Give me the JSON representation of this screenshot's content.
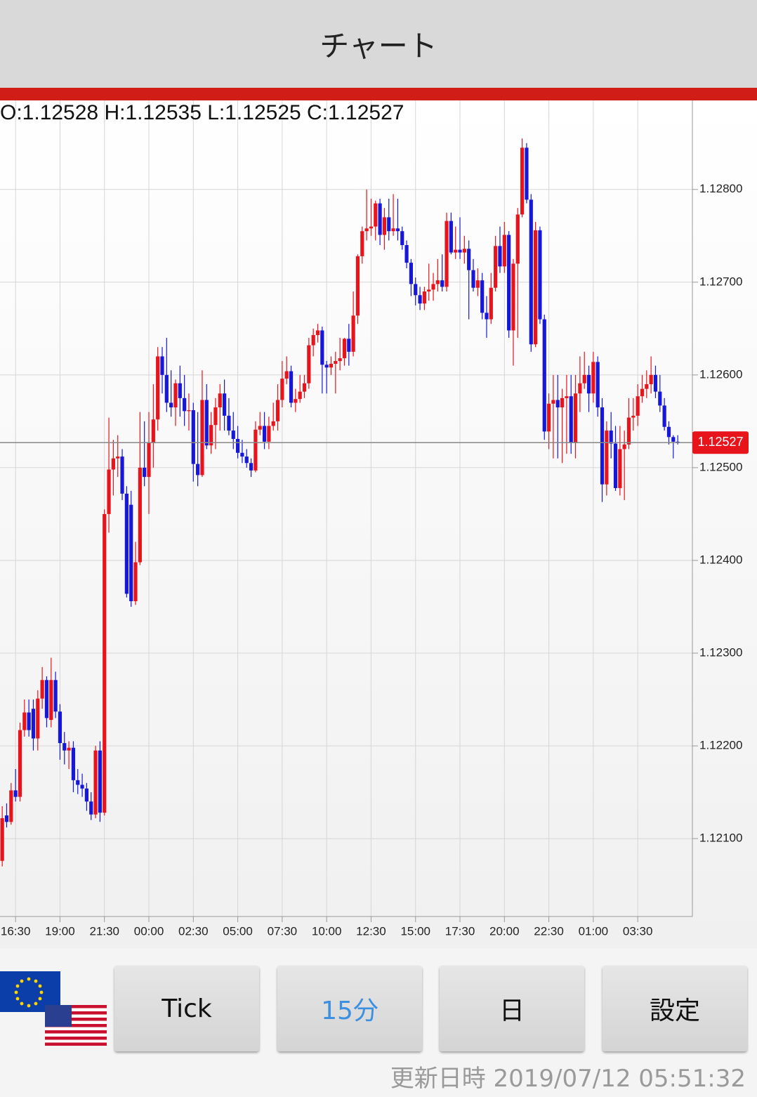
{
  "header": {
    "title": "チャート"
  },
  "chart_data": {
    "type": "candlestick",
    "ohlc_label": "O:1.12528 H:1.12535 L:1.12525 C:1.12527",
    "up_color": "#e8141c",
    "down_color": "#1717d9",
    "grid": true,
    "last_price": 1.12527,
    "xlim": [
      -0.5,
      155.3
    ],
    "xticks": [
      {
        "value": 3,
        "label": "16:30"
      },
      {
        "value": 13,
        "label": "19:00"
      },
      {
        "value": 23,
        "label": "21:30"
      },
      {
        "value": 33,
        "label": "00:00"
      },
      {
        "value": 43,
        "label": "02:30"
      },
      {
        "value": 53,
        "label": "05:00"
      },
      {
        "value": 63,
        "label": "07:30"
      },
      {
        "value": 73,
        "label": "10:00"
      },
      {
        "value": 83,
        "label": "12:30"
      },
      {
        "value": 93,
        "label": "15:00"
      },
      {
        "value": 103,
        "label": "17:30"
      },
      {
        "value": 113,
        "label": "20:00"
      },
      {
        "value": 123,
        "label": "22:30"
      },
      {
        "value": 133,
        "label": "01:00"
      },
      {
        "value": 143,
        "label": "03:30"
      }
    ],
    "ylim": [
      1.12016,
      1.12896
    ],
    "yticks": [
      {
        "value": 1.121,
        "label": "1.12100"
      },
      {
        "value": 1.122,
        "label": "1.12200"
      },
      {
        "value": 1.123,
        "label": "1.12300"
      },
      {
        "value": 1.124,
        "label": "1.12400"
      },
      {
        "value": 1.125,
        "label": "1.12500"
      },
      {
        "value": 1.126,
        "label": "1.12600"
      },
      {
        "value": 1.127,
        "label": "1.12700"
      },
      {
        "value": 1.128,
        "label": "1.12800"
      }
    ],
    "candles": [
      [
        1.12076,
        1.12135,
        1.1207,
        1.12122
      ],
      [
        1.12125,
        1.12138,
        1.12112,
        1.12118
      ],
      [
        1.12118,
        1.1216,
        1.12115,
        1.12152
      ],
      [
        1.12152,
        1.12175,
        1.1214,
        1.12145
      ],
      [
        1.12145,
        1.12225,
        1.1214,
        1.12217
      ],
      [
        1.12217,
        1.1225,
        1.1221,
        1.12236
      ],
      [
        1.12236,
        1.1225,
        1.1221,
        1.12217
      ],
      [
        1.1224,
        1.1225,
        1.12195,
        1.12208
      ],
      [
        1.12208,
        1.1226,
        1.12195,
        1.12251
      ],
      [
        1.12251,
        1.12285,
        1.1224,
        1.12271
      ],
      [
        1.12271,
        1.12275,
        1.1222,
        1.1223
      ],
      [
        1.12228,
        1.12295,
        1.1222,
        1.12271
      ],
      [
        1.12271,
        1.1228,
        1.1223,
        1.12237
      ],
      [
        1.12237,
        1.12245,
        1.12185,
        1.12203
      ],
      [
        1.12203,
        1.12215,
        1.1218,
        1.12195
      ],
      [
        1.12195,
        1.12205,
        1.12175,
        1.12198
      ],
      [
        1.12198,
        1.12205,
        1.1215,
        1.12163
      ],
      [
        1.12163,
        1.12175,
        1.12148,
        1.12158
      ],
      [
        1.12158,
        1.1217,
        1.12145,
        1.12154
      ],
      [
        1.12154,
        1.1216,
        1.1213,
        1.1214
      ],
      [
        1.1214,
        1.1215,
        1.1212,
        1.12126
      ],
      [
        1.12126,
        1.122,
        1.12122,
        1.12195
      ],
      [
        1.12195,
        1.12205,
        1.12118,
        1.12128
      ],
      [
        1.12128,
        1.12455,
        1.12125,
        1.1245
      ],
      [
        1.1245,
        1.12554,
        1.1243,
        1.12498
      ],
      [
        1.12498,
        1.1253,
        1.1247,
        1.1251
      ],
      [
        1.1251,
        1.12535,
        1.1249,
        1.12512
      ],
      [
        1.12512,
        1.1252,
        1.12465,
        1.12472
      ],
      [
        1.12472,
        1.1248,
        1.1236,
        1.12364
      ],
      [
        1.1246,
        1.12475,
        1.1235,
        1.12356
      ],
      [
        1.12356,
        1.1242,
        1.12352,
        1.12398
      ],
      [
        1.12398,
        1.1256,
        1.12395,
        1.125
      ],
      [
        1.125,
        1.1255,
        1.1248,
        1.1249
      ],
      [
        1.1249,
        1.1256,
        1.1245,
        1.12527
      ],
      [
        1.12527,
        1.1259,
        1.125,
        1.12552
      ],
      [
        1.12552,
        1.1263,
        1.1254,
        1.1262
      ],
      [
        1.1262,
        1.1263,
        1.1258,
        1.126
      ],
      [
        1.126,
        1.1264,
        1.1256,
        1.1257
      ],
      [
        1.1257,
        1.12605,
        1.12555,
        1.12565
      ],
      [
        1.12565,
        1.12595,
        1.12545,
        1.12591
      ],
      [
        1.12591,
        1.1261,
        1.12555,
        1.12575
      ],
      [
        1.12575,
        1.126,
        1.12545,
        1.12561
      ],
      [
        1.12561,
        1.1258,
        1.1254,
        1.12562
      ],
      [
        1.12562,
        1.1257,
        1.12485,
        1.12504
      ],
      [
        1.12504,
        1.1256,
        1.1248,
        1.12492
      ],
      [
        1.12492,
        1.12605,
        1.1249,
        1.12573
      ],
      [
        1.12573,
        1.1259,
        1.1252,
        1.12524
      ],
      [
        1.12524,
        1.1256,
        1.12515,
        1.12546
      ],
      [
        1.12546,
        1.12575,
        1.1252,
        1.12565
      ],
      [
        1.12565,
        1.1259,
        1.1254,
        1.1258
      ],
      [
        1.1258,
        1.12595,
        1.1254,
        1.12556
      ],
      [
        1.12556,
        1.12575,
        1.12535,
        1.1254
      ],
      [
        1.1254,
        1.1256,
        1.1252,
        1.12531
      ],
      [
        1.12531,
        1.12545,
        1.1251,
        1.12516
      ],
      [
        1.12516,
        1.1253,
        1.12505,
        1.12512
      ],
      [
        1.12512,
        1.1252,
        1.125,
        1.12505
      ],
      [
        1.12505,
        1.1251,
        1.1249,
        1.12497
      ],
      [
        1.12497,
        1.1255,
        1.12495,
        1.12541
      ],
      [
        1.12541,
        1.1256,
        1.12535,
        1.12545
      ],
      [
        1.12545,
        1.1256,
        1.1252,
        1.12528
      ],
      [
        1.12528,
        1.12555,
        1.1252,
        1.12545
      ],
      [
        1.12545,
        1.1257,
        1.1254,
        1.1255
      ],
      [
        1.1255,
        1.1259,
        1.1254,
        1.12573
      ],
      [
        1.12573,
        1.12615,
        1.12565,
        1.12596
      ],
      [
        1.12596,
        1.1262,
        1.1259,
        1.12604
      ],
      [
        1.12604,
        1.1261,
        1.12565,
        1.1257
      ],
      [
        1.1257,
        1.12585,
        1.1256,
        1.12574
      ],
      [
        1.12574,
        1.126,
        1.1257,
        1.12582
      ],
      [
        1.12582,
        1.126,
        1.12575,
        1.12591
      ],
      [
        1.12591,
        1.1264,
        1.12585,
        1.12632
      ],
      [
        1.12632,
        1.1265,
        1.1262,
        1.12643
      ],
      [
        1.12643,
        1.12655,
        1.12635,
        1.12648
      ],
      [
        1.12648,
        1.12652,
        1.1258,
        1.12611
      ],
      [
        1.12611,
        1.12615,
        1.1258,
        1.12608
      ],
      [
        1.12608,
        1.1262,
        1.126,
        1.12612
      ],
      [
        1.12612,
        1.12625,
        1.1258,
        1.12615
      ],
      [
        1.12615,
        1.1264,
        1.12605,
        1.12618
      ],
      [
        1.12618,
        1.1264,
        1.1261,
        1.12639
      ],
      [
        1.12639,
        1.12655,
        1.1261,
        1.12625
      ],
      [
        1.12625,
        1.1269,
        1.1262,
        1.12664
      ],
      [
        1.12664,
        1.1273,
        1.12655,
        1.12728
      ],
      [
        1.12728,
        1.1276,
        1.1272,
        1.12755
      ],
      [
        1.12755,
        1.128,
        1.12745,
        1.12758
      ],
      [
        1.12758,
        1.1279,
        1.1275,
        1.1276
      ],
      [
        1.1276,
        1.12788,
        1.12745,
        1.12785
      ],
      [
        1.12785,
        1.1279,
        1.1274,
        1.12751
      ],
      [
        1.12751,
        1.1278,
        1.12735,
        1.1277
      ],
      [
        1.1277,
        1.1279,
        1.12745,
        1.12755
      ],
      [
        1.12755,
        1.12795,
        1.1275,
        1.12758
      ],
      [
        1.12758,
        1.1279,
        1.12745,
        1.12755
      ],
      [
        1.12755,
        1.1276,
        1.12735,
        1.1274
      ],
      [
        1.1274,
        1.12745,
        1.12715,
        1.12721
      ],
      [
        1.12721,
        1.12725,
        1.12685,
        1.12698
      ],
      [
        1.12698,
        1.12705,
        1.12675,
        1.12686
      ],
      [
        1.12686,
        1.12695,
        1.1267,
        1.12677
      ],
      [
        1.12677,
        1.12695,
        1.1267,
        1.1269
      ],
      [
        1.1269,
        1.1272,
        1.1268,
        1.12692
      ],
      [
        1.12692,
        1.1271,
        1.1268,
        1.12698
      ],
      [
        1.12698,
        1.12725,
        1.1269,
        1.12702
      ],
      [
        1.12702,
        1.1273,
        1.1269,
        1.12695
      ],
      [
        1.12695,
        1.12775,
        1.1269,
        1.12766
      ],
      [
        1.12766,
        1.12775,
        1.1273,
        1.12732
      ],
      [
        1.12732,
        1.1276,
        1.12725,
        1.12735
      ],
      [
        1.12735,
        1.1277,
        1.12725,
        1.12732
      ],
      [
        1.12732,
        1.1275,
        1.1272,
        1.12736
      ],
      [
        1.12736,
        1.12745,
        1.1266,
        1.12713
      ],
      [
        1.12713,
        1.12725,
        1.1269,
        1.12694
      ],
      [
        1.12694,
        1.12715,
        1.12685,
        1.12702
      ],
      [
        1.12702,
        1.1271,
        1.1266,
        1.12667
      ],
      [
        1.12667,
        1.12685,
        1.1264,
        1.1266
      ],
      [
        1.1266,
        1.1271,
        1.12655,
        1.12694
      ],
      [
        1.12694,
        1.1275,
        1.1269,
        1.12739
      ],
      [
        1.12739,
        1.1276,
        1.1271,
        1.12717
      ],
      [
        1.12717,
        1.12765,
        1.1271,
        1.12751
      ],
      [
        1.12751,
        1.12755,
        1.1264,
        1.12648
      ],
      [
        1.12648,
        1.12725,
        1.1261,
        1.1272
      ],
      [
        1.1272,
        1.1278,
        1.1264,
        1.12773
      ],
      [
        1.12773,
        1.12855,
        1.1277,
        1.12845
      ],
      [
        1.12845,
        1.1285,
        1.12785,
        1.12789
      ],
      [
        1.12789,
        1.12795,
        1.12625,
        1.12633
      ],
      [
        1.12633,
        1.12765,
        1.1263,
        1.12756
      ],
      [
        1.12756,
        1.1276,
        1.12655,
        1.1266
      ],
      [
        1.1266,
        1.12665,
        1.1253,
        1.12539
      ],
      [
        1.12539,
        1.1258,
        1.1252,
        1.12569
      ],
      [
        1.12569,
        1.126,
        1.1251,
        1.12573
      ],
      [
        1.12573,
        1.126,
        1.1251,
        1.12565
      ],
      [
        1.12565,
        1.12585,
        1.12505,
        1.12575
      ],
      [
        1.12575,
        1.126,
        1.12515,
        1.12577
      ],
      [
        1.12577,
        1.126,
        1.12515,
        1.12527
      ],
      [
        1.12527,
        1.126,
        1.1251,
        1.1258
      ],
      [
        1.1258,
        1.1262,
        1.1256,
        1.12591
      ],
      [
        1.12591,
        1.12625,
        1.12585,
        1.126
      ],
      [
        1.126,
        1.1261,
        1.1256,
        1.1258
      ],
      [
        1.1258,
        1.12625,
        1.1257,
        1.12614
      ],
      [
        1.12614,
        1.1262,
        1.12555,
        1.12565
      ],
      [
        1.12565,
        1.12575,
        1.12463,
        1.12482
      ],
      [
        1.12482,
        1.1255,
        1.1247,
        1.1254
      ],
      [
        1.1254,
        1.1256,
        1.1251,
        1.12526
      ],
      [
        1.12526,
        1.12545,
        1.12475,
        1.12478
      ],
      [
        1.12478,
        1.12545,
        1.1247,
        1.1252
      ],
      [
        1.1252,
        1.1254,
        1.12465,
        1.12525
      ],
      [
        1.12525,
        1.12575,
        1.1252,
        1.12554
      ],
      [
        1.12554,
        1.12575,
        1.1254,
        1.12556
      ],
      [
        1.12556,
        1.1259,
        1.12545,
        1.12577
      ],
      [
        1.12577,
        1.126,
        1.1257,
        1.12585
      ],
      [
        1.12585,
        1.12605,
        1.12575,
        1.1259
      ],
      [
        1.1259,
        1.1262,
        1.1258,
        1.126
      ],
      [
        1.126,
        1.1261,
        1.12575,
        1.12582
      ],
      [
        1.12582,
        1.126,
        1.1256,
        1.12567
      ],
      [
        1.12567,
        1.12575,
        1.1254,
        1.12544
      ],
      [
        1.12544,
        1.1255,
        1.12525,
        1.12533
      ],
      [
        1.12533,
        1.12535,
        1.1251,
        1.12528
      ],
      [
        1.12528,
        1.12535,
        1.12525,
        1.12527
      ]
    ]
  },
  "ui": {
    "buttons": [
      "Tick",
      "15分",
      "日",
      "設定"
    ]
  },
  "footer": {
    "updated": "更新日時 2019/07/12 05:51:32"
  }
}
